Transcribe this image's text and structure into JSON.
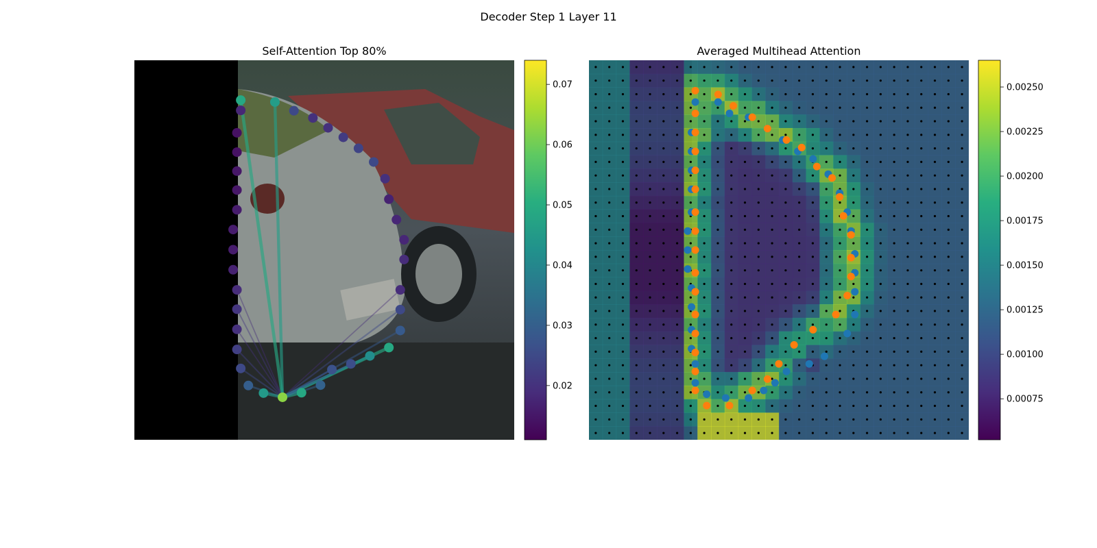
{
  "suptitle": "Decoder Step 1 Layer 11",
  "chart_data": [
    {
      "type": "scatter",
      "title": "Self-Attention Top 80%",
      "xlabel": "",
      "ylabel": "",
      "background": "car photo (image overlay)",
      "colormap": "viridis",
      "colorbar": {
        "min": 0.011,
        "max": 0.074,
        "ticks": [
          0.02,
          0.03,
          0.04,
          0.05,
          0.06,
          0.07
        ],
        "tick_labels": [
          "0.02",
          "0.03",
          "0.04",
          "0.05",
          "0.06",
          "0.07"
        ]
      },
      "query_point": {
        "x": 0.39,
        "y": 0.888,
        "value": 0.063
      },
      "points": [
        {
          "x": 0.28,
          "y": 0.105,
          "value": 0.049
        },
        {
          "x": 0.37,
          "y": 0.11,
          "value": 0.046
        },
        {
          "x": 0.28,
          "y": 0.132,
          "value": 0.018
        },
        {
          "x": 0.42,
          "y": 0.133,
          "value": 0.025
        },
        {
          "x": 0.47,
          "y": 0.152,
          "value": 0.02
        },
        {
          "x": 0.51,
          "y": 0.178,
          "value": 0.02
        },
        {
          "x": 0.55,
          "y": 0.203,
          "value": 0.022
        },
        {
          "x": 0.59,
          "y": 0.232,
          "value": 0.024
        },
        {
          "x": 0.27,
          "y": 0.191,
          "value": 0.014
        },
        {
          "x": 0.27,
          "y": 0.242,
          "value": 0.014
        },
        {
          "x": 0.27,
          "y": 0.292,
          "value": 0.015
        },
        {
          "x": 0.63,
          "y": 0.268,
          "value": 0.025
        },
        {
          "x": 0.27,
          "y": 0.342,
          "value": 0.015
        },
        {
          "x": 0.66,
          "y": 0.312,
          "value": 0.02
        },
        {
          "x": 0.27,
          "y": 0.394,
          "value": 0.016
        },
        {
          "x": 0.67,
          "y": 0.366,
          "value": 0.017
        },
        {
          "x": 0.26,
          "y": 0.446,
          "value": 0.016
        },
        {
          "x": 0.69,
          "y": 0.42,
          "value": 0.018
        },
        {
          "x": 0.26,
          "y": 0.499,
          "value": 0.016
        },
        {
          "x": 0.71,
          "y": 0.473,
          "value": 0.018
        },
        {
          "x": 0.26,
          "y": 0.552,
          "value": 0.017
        },
        {
          "x": 0.71,
          "y": 0.525,
          "value": 0.019
        },
        {
          "x": 0.27,
          "y": 0.605,
          "value": 0.019
        },
        {
          "x": 0.7,
          "y": 0.605,
          "value": 0.019
        },
        {
          "x": 0.27,
          "y": 0.656,
          "value": 0.021
        },
        {
          "x": 0.7,
          "y": 0.657,
          "value": 0.025
        },
        {
          "x": 0.27,
          "y": 0.709,
          "value": 0.02
        },
        {
          "x": 0.7,
          "y": 0.712,
          "value": 0.029
        },
        {
          "x": 0.27,
          "y": 0.762,
          "value": 0.023
        },
        {
          "x": 0.67,
          "y": 0.757,
          "value": 0.049
        },
        {
          "x": 0.28,
          "y": 0.812,
          "value": 0.025
        },
        {
          "x": 0.62,
          "y": 0.779,
          "value": 0.042
        },
        {
          "x": 0.3,
          "y": 0.857,
          "value": 0.03
        },
        {
          "x": 0.57,
          "y": 0.8,
          "value": 0.026
        },
        {
          "x": 0.34,
          "y": 0.877,
          "value": 0.045
        },
        {
          "x": 0.52,
          "y": 0.815,
          "value": 0.027
        },
        {
          "x": 0.44,
          "y": 0.876,
          "value": 0.049
        },
        {
          "x": 0.49,
          "y": 0.856,
          "value": 0.031
        }
      ]
    },
    {
      "type": "heatmap",
      "title": "Averaged Multihead Attention",
      "xlabel": "",
      "ylabel": "",
      "background": "car photo (image overlay)",
      "colormap": "viridis",
      "colorbar": {
        "min": 0.00052,
        "max": 0.00265,
        "ticks": [
          0.00075,
          0.001,
          0.00125,
          0.0015,
          0.00175,
          0.002,
          0.00225,
          0.0025
        ],
        "tick_labels": [
          "0.00075",
          "0.00100",
          "0.00125",
          "0.00150",
          "0.00175",
          "0.00200",
          "0.00225",
          "0.00250"
        ]
      },
      "grid": {
        "cols": 28,
        "rows": 28
      },
      "series": [
        {
          "marker": "blue",
          "points": [
            [
              0.28,
              0.11
            ],
            [
              0.34,
              0.11
            ],
            [
              0.37,
              0.14
            ],
            [
              0.42,
              0.15
            ],
            [
              0.47,
              0.18
            ],
            [
              0.51,
              0.21
            ],
            [
              0.55,
              0.24
            ],
            [
              0.59,
              0.26
            ],
            [
              0.63,
              0.3
            ],
            [
              0.66,
              0.35
            ],
            [
              0.68,
              0.4
            ],
            [
              0.69,
              0.45
            ],
            [
              0.7,
              0.51
            ],
            [
              0.7,
              0.56
            ],
            [
              0.7,
              0.61
            ],
            [
              0.7,
              0.67
            ],
            [
              0.68,
              0.72
            ],
            [
              0.62,
              0.78
            ],
            [
              0.58,
              0.8
            ],
            [
              0.52,
              0.82
            ],
            [
              0.49,
              0.85
            ],
            [
              0.46,
              0.87
            ],
            [
              0.42,
              0.89
            ],
            [
              0.36,
              0.89
            ],
            [
              0.31,
              0.88
            ],
            [
              0.28,
              0.85
            ],
            [
              0.28,
              0.8
            ],
            [
              0.27,
              0.76
            ],
            [
              0.27,
              0.71
            ],
            [
              0.27,
              0.65
            ],
            [
              0.27,
              0.6
            ],
            [
              0.26,
              0.55
            ],
            [
              0.26,
              0.5
            ],
            [
              0.26,
              0.45
            ],
            [
              0.27,
              0.4
            ],
            [
              0.27,
              0.34
            ],
            [
              0.27,
              0.29
            ],
            [
              0.27,
              0.24
            ],
            [
              0.27,
              0.19
            ],
            [
              0.28,
              0.14
            ]
          ]
        },
        {
          "marker": "orange",
          "points": [
            [
              0.28,
              0.08
            ],
            [
              0.34,
              0.09
            ],
            [
              0.38,
              0.12
            ],
            [
              0.43,
              0.15
            ],
            [
              0.47,
              0.18
            ],
            [
              0.52,
              0.21
            ],
            [
              0.56,
              0.23
            ],
            [
              0.6,
              0.28
            ],
            [
              0.64,
              0.31
            ],
            [
              0.66,
              0.36
            ],
            [
              0.67,
              0.41
            ],
            [
              0.69,
              0.46
            ],
            [
              0.69,
              0.52
            ],
            [
              0.69,
              0.57
            ],
            [
              0.68,
              0.62
            ],
            [
              0.65,
              0.67
            ],
            [
              0.59,
              0.71
            ],
            [
              0.54,
              0.75
            ],
            [
              0.5,
              0.8
            ],
            [
              0.47,
              0.84
            ],
            [
              0.43,
              0.87
            ],
            [
              0.37,
              0.91
            ],
            [
              0.31,
              0.91
            ],
            [
              0.28,
              0.87
            ],
            [
              0.28,
              0.82
            ],
            [
              0.28,
              0.77
            ],
            [
              0.28,
              0.72
            ],
            [
              0.28,
              0.67
            ],
            [
              0.28,
              0.61
            ],
            [
              0.28,
              0.56
            ],
            [
              0.28,
              0.5
            ],
            [
              0.28,
              0.45
            ],
            [
              0.28,
              0.4
            ],
            [
              0.28,
              0.34
            ],
            [
              0.28,
              0.29
            ],
            [
              0.28,
              0.24
            ],
            [
              0.28,
              0.19
            ],
            [
              0.28,
              0.14
            ]
          ]
        }
      ]
    }
  ]
}
